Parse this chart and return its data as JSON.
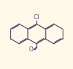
{
  "background_color": "#fdf8e8",
  "line_color": "#4a4a6a",
  "line_width": 0.9,
  "figsize": [
    1.06,
    1.01
  ],
  "dpi": 100,
  "Cl_label": "Cl",
  "O_label": "O",
  "font_size": 6.5,
  "font_color": "#4a4a6a",
  "scale": 0.72,
  "xlim": [
    -2.6,
    2.6
  ],
  "ylim": [
    -2.1,
    2.0
  ]
}
